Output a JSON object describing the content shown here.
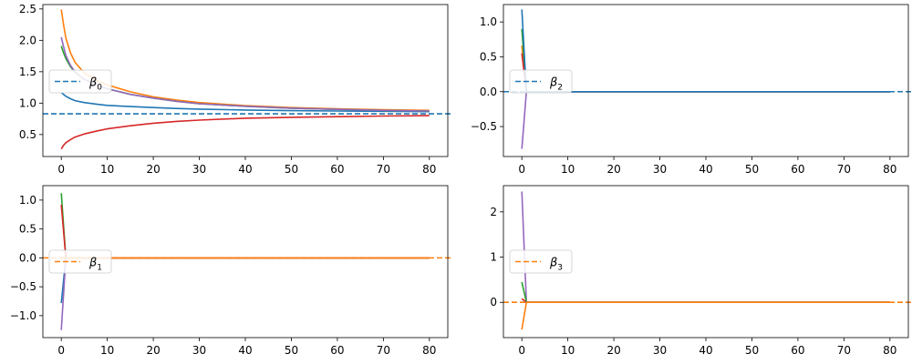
{
  "colors": {
    "blue": "#1f77b4",
    "orange": "#ff7f0e",
    "green": "#2ca02c",
    "red": "#d62728",
    "purple": "#9467bd"
  },
  "chart_data": [
    {
      "type": "line",
      "legend": {
        "symbol": "β",
        "subscript": "0",
        "placement": "center-left"
      },
      "xlim": [
        -4,
        84
      ],
      "ylim": [
        0.15,
        2.57
      ],
      "xticks": [
        0,
        10,
        20,
        30,
        40,
        50,
        60,
        70,
        80
      ],
      "yticks": [
        0.5,
        1.0,
        1.5,
        2.0,
        2.5
      ],
      "ytick_labels": [
        "0.5",
        "1.0",
        "1.5",
        "2.0",
        "2.5"
      ],
      "reference_line": {
        "y": 0.83,
        "color": "#1f77b4",
        "style": "dashed"
      },
      "series": [
        {
          "color": "#1f77b4",
          "x": [
            0,
            0.5,
            1,
            2,
            3,
            5,
            8,
            10,
            15,
            20,
            25,
            30,
            40,
            50,
            60,
            70,
            80
          ],
          "y": [
            1.17,
            1.14,
            1.11,
            1.07,
            1.04,
            1.01,
            0.98,
            0.965,
            0.945,
            0.93,
            0.915,
            0.905,
            0.89,
            0.88,
            0.875,
            0.87,
            0.865
          ]
        },
        {
          "color": "#ff7f0e",
          "x": [
            0,
            0.5,
            1,
            2,
            3,
            5,
            8,
            10,
            15,
            20,
            25,
            30,
            40,
            50,
            60,
            70,
            80
          ],
          "y": [
            2.49,
            2.25,
            2.04,
            1.8,
            1.65,
            1.48,
            1.35,
            1.29,
            1.18,
            1.1,
            1.05,
            1.01,
            0.96,
            0.93,
            0.91,
            0.895,
            0.885
          ]
        },
        {
          "color": "#2ca02c",
          "x": [
            0,
            0.5,
            1,
            2,
            3,
            5,
            8,
            10,
            15,
            20,
            25,
            30,
            40,
            50,
            60,
            70,
            80
          ],
          "y": [
            1.91,
            1.8,
            1.71,
            1.58,
            1.49,
            1.38,
            1.28,
            1.23,
            1.14,
            1.08,
            1.03,
            0.99,
            0.95,
            0.92,
            0.9,
            0.885,
            0.875
          ]
        },
        {
          "color": "#d62728",
          "x": [
            0,
            0.5,
            1,
            2,
            3,
            5,
            8,
            10,
            15,
            20,
            25,
            30,
            40,
            50,
            60,
            70,
            80
          ],
          "y": [
            0.27,
            0.33,
            0.37,
            0.42,
            0.46,
            0.51,
            0.56,
            0.59,
            0.64,
            0.68,
            0.71,
            0.73,
            0.76,
            0.775,
            0.785,
            0.795,
            0.8
          ]
        },
        {
          "color": "#9467bd",
          "x": [
            0,
            0.5,
            1,
            2,
            3,
            5,
            8,
            10,
            15,
            20,
            25,
            30,
            40,
            50,
            60,
            70,
            80
          ],
          "y": [
            2.05,
            1.9,
            1.76,
            1.6,
            1.5,
            1.38,
            1.28,
            1.23,
            1.14,
            1.08,
            1.03,
            0.99,
            0.95,
            0.92,
            0.9,
            0.885,
            0.875
          ]
        }
      ]
    },
    {
      "type": "line",
      "legend": {
        "symbol": "β",
        "subscript": "2",
        "placement": "center-left"
      },
      "xlim": [
        -4,
        84
      ],
      "ylim": [
        -0.93,
        1.25
      ],
      "xticks": [
        0,
        10,
        20,
        30,
        40,
        50,
        60,
        70,
        80
      ],
      "yticks": [
        -0.5,
        0.0,
        0.5,
        1.0
      ],
      "ytick_labels": [
        "−0.5",
        "0.0",
        "0.5",
        "1.0"
      ],
      "reference_line": {
        "y": 0.0,
        "color": "#1f77b4",
        "style": "dashed"
      },
      "series": [
        {
          "color": "#ff7f0e",
          "x": [
            0,
            1,
            80
          ],
          "y": [
            0.66,
            0.0,
            0.0
          ]
        },
        {
          "color": "#2ca02c",
          "x": [
            0,
            1,
            80
          ],
          "y": [
            0.9,
            0.0,
            0.0
          ]
        },
        {
          "color": "#d62728",
          "x": [
            0,
            1,
            80
          ],
          "y": [
            0.55,
            0.0,
            0.0
          ]
        },
        {
          "color": "#9467bd",
          "x": [
            0,
            1,
            80
          ],
          "y": [
            -0.82,
            0.0,
            0.0
          ]
        },
        {
          "color": "#1f77b4",
          "x": [
            0,
            1,
            80
          ],
          "y": [
            1.18,
            0.0,
            0.0
          ]
        }
      ]
    },
    {
      "type": "line",
      "legend": {
        "symbol": "β",
        "subscript": "1",
        "placement": "center-left"
      },
      "xlim": [
        -4,
        84
      ],
      "ylim": [
        -1.38,
        1.25
      ],
      "xticks": [
        0,
        10,
        20,
        30,
        40,
        50,
        60,
        70,
        80
      ],
      "yticks": [
        -1.0,
        -0.5,
        0.0,
        0.5,
        1.0
      ],
      "ytick_labels": [
        "−1.0",
        "−0.5",
        "0.0",
        "0.5",
        "1.0"
      ],
      "reference_line": {
        "y": 0.0,
        "color": "#ff7f0e",
        "style": "dashed"
      },
      "series": [
        {
          "color": "#1f77b4",
          "x": [
            0,
            1,
            80
          ],
          "y": [
            -0.78,
            0.0,
            0.0
          ]
        },
        {
          "color": "#9467bd",
          "x": [
            0,
            1,
            80
          ],
          "y": [
            -1.25,
            0.0,
            0.0
          ]
        },
        {
          "color": "#2ca02c",
          "x": [
            0,
            1,
            80
          ],
          "y": [
            1.12,
            0.0,
            0.0
          ]
        },
        {
          "color": "#d62728",
          "x": [
            0,
            1,
            80
          ],
          "y": [
            0.92,
            0.0,
            0.0
          ]
        },
        {
          "color": "#ff7f0e",
          "x": [
            0,
            1,
            80
          ],
          "y": [
            0.0,
            0.0,
            0.0
          ]
        }
      ]
    },
    {
      "type": "line",
      "legend": {
        "symbol": "β",
        "subscript": "3",
        "placement": "center-left"
      },
      "xlim": [
        -4,
        84
      ],
      "ylim": [
        -0.78,
        2.58
      ],
      "xticks": [
        0,
        10,
        20,
        30,
        40,
        50,
        60,
        70,
        80
      ],
      "yticks": [
        0,
        1,
        2
      ],
      "ytick_labels": [
        "0",
        "1",
        "2"
      ],
      "reference_line": {
        "y": 0.0,
        "color": "#ff7f0e",
        "style": "dashed"
      },
      "series": [
        {
          "color": "#9467bd",
          "x": [
            0,
            1,
            80
          ],
          "y": [
            2.45,
            0.0,
            0.0
          ]
        },
        {
          "color": "#2ca02c",
          "x": [
            0,
            1,
            80
          ],
          "y": [
            0.45,
            0.0,
            0.0
          ]
        },
        {
          "color": "#d62728",
          "x": [
            0,
            1,
            80
          ],
          "y": [
            0.08,
            0.0,
            0.0
          ]
        },
        {
          "color": "#1f77b4",
          "x": [
            0,
            1,
            80
          ],
          "y": [
            0.0,
            0.0,
            0.0
          ]
        },
        {
          "color": "#ff7f0e",
          "x": [
            0,
            1,
            80
          ],
          "y": [
            -0.6,
            0.0,
            0.0
          ]
        }
      ]
    }
  ]
}
